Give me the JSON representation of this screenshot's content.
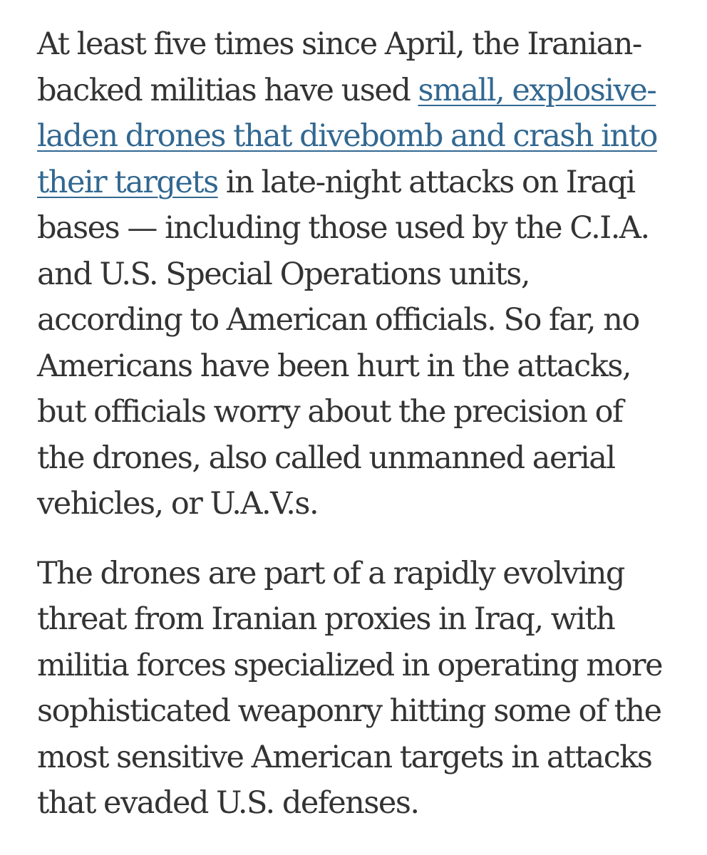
{
  "article": {
    "paragraph1": {
      "line1": "At least five times since April, the Iranian-",
      "line2_text": "backed militias have used ",
      "link": {
        "line2_part": "small, explosive-",
        "line3_part": "laden drones that divebomb and crash into",
        "line4_part": "their targets"
      },
      "line4_rest": " in late-night attacks on Iraqi",
      "line5": "bases — including those used by the C.I.A.",
      "line6": "and U.S. Special Operations units,",
      "line7": "according to American officials. So far, no",
      "line8": "Americans have been hurt in the attacks,",
      "line9": "but officials worry about the precision of",
      "line10": "the drones, also called unmanned aerial",
      "line11": "vehicles, or U.A.V.s."
    },
    "paragraph2": {
      "line1": "The drones are part of a rapidly evolving",
      "line2": "threat from Iranian proxies in Iraq, with",
      "line3": "militia forces specialized in operating more",
      "line4": "sophisticated weaponry hitting some of the",
      "line5": "most sensitive American targets in attacks",
      "line6": "that evaded U.S. defenses."
    },
    "link_color": "#326891",
    "text_color": "#333333"
  }
}
